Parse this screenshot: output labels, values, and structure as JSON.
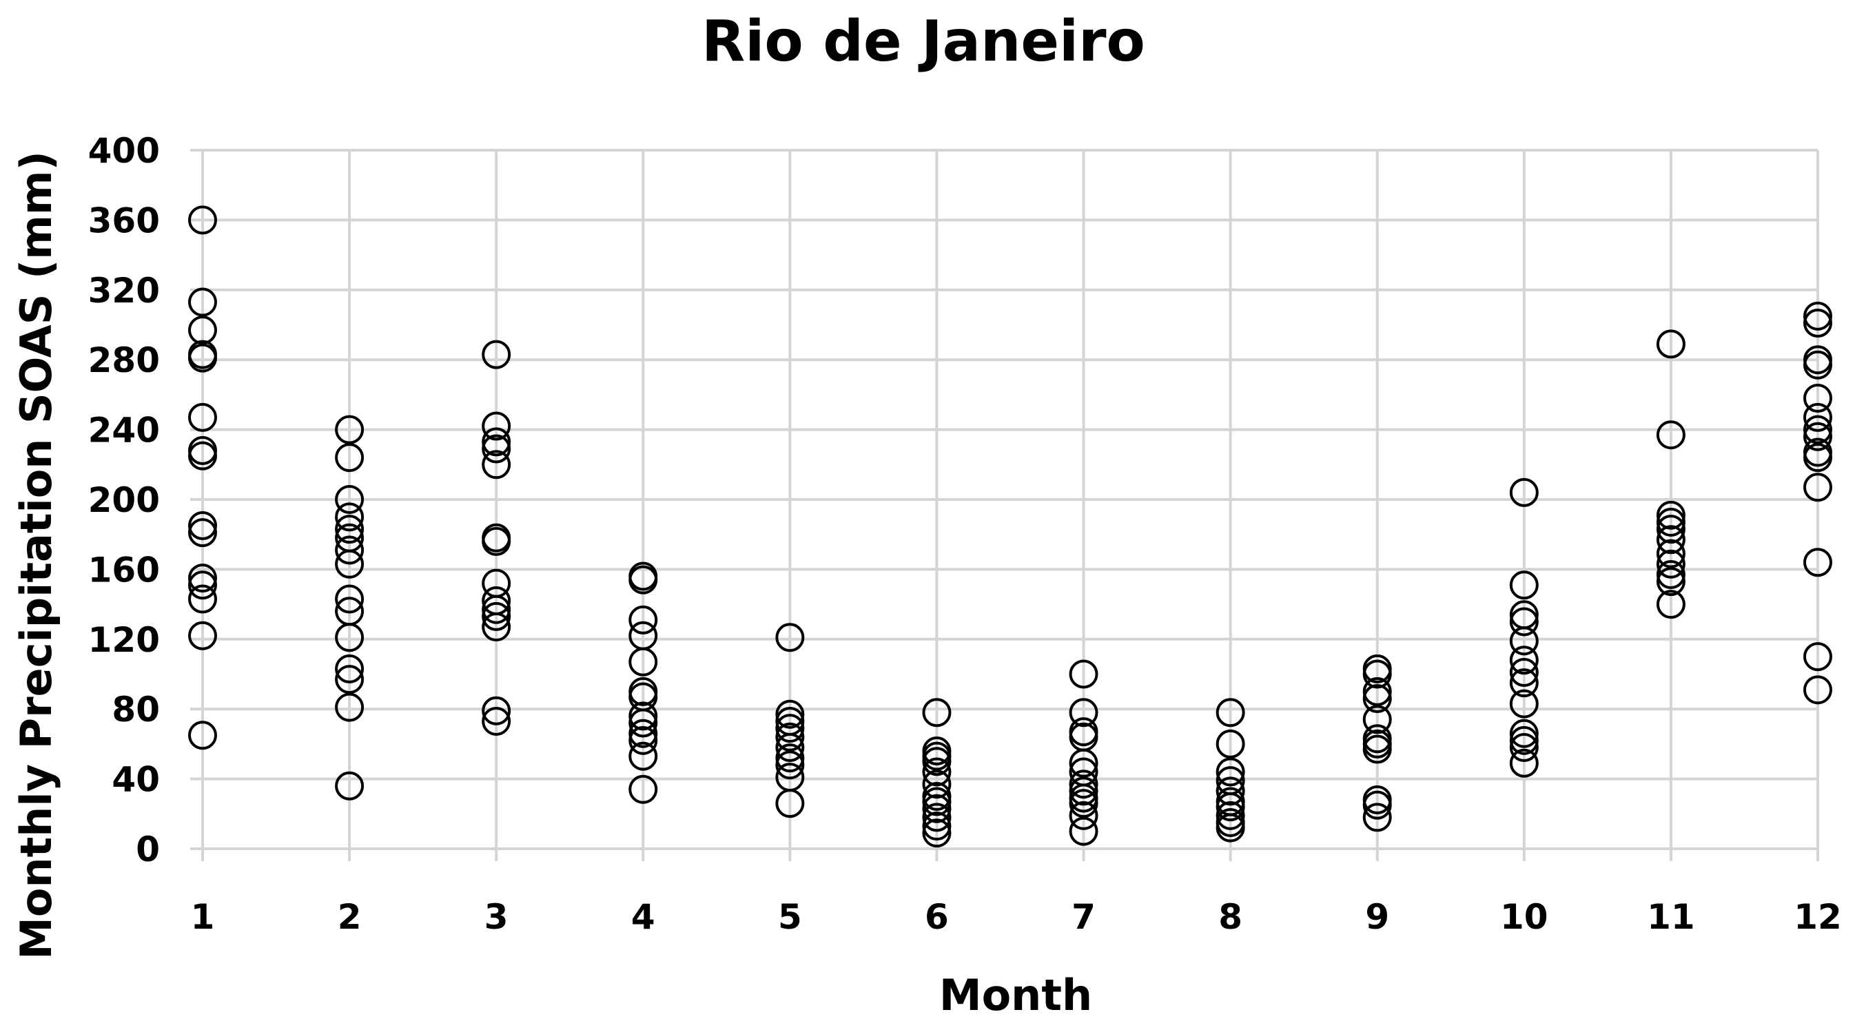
{
  "chart_data": {
    "type": "scatter",
    "title": "Rio de Janeiro",
    "xlabel": "Month",
    "ylabel": "Monthly Precipitation SOAS (mm)",
    "x_ticks": [
      1,
      2,
      3,
      4,
      5,
      6,
      7,
      8,
      9,
      10,
      11,
      12
    ],
    "y_ticks": [
      0,
      40,
      80,
      120,
      160,
      200,
      240,
      280,
      320,
      360,
      400
    ],
    "xlim": [
      1,
      12
    ],
    "ylim": [
      0,
      400
    ],
    "grid": true,
    "marker": "open-circle",
    "points": [
      [
        1,
        360
      ],
      [
        1,
        313
      ],
      [
        1,
        297
      ],
      [
        1,
        283
      ],
      [
        1,
        281
      ],
      [
        1,
        247
      ],
      [
        1,
        228
      ],
      [
        1,
        225
      ],
      [
        1,
        185
      ],
      [
        1,
        181
      ],
      [
        1,
        155
      ],
      [
        1,
        151
      ],
      [
        1,
        143
      ],
      [
        1,
        122
      ],
      [
        1,
        65
      ],
      [
        2,
        240
      ],
      [
        2,
        224
      ],
      [
        2,
        200
      ],
      [
        2,
        190
      ],
      [
        2,
        183
      ],
      [
        2,
        178
      ],
      [
        2,
        171
      ],
      [
        2,
        163
      ],
      [
        2,
        143
      ],
      [
        2,
        136
      ],
      [
        2,
        121
      ],
      [
        2,
        103
      ],
      [
        2,
        97
      ],
      [
        2,
        81
      ],
      [
        2,
        36
      ],
      [
        3,
        283
      ],
      [
        3,
        242
      ],
      [
        3,
        233
      ],
      [
        3,
        229
      ],
      [
        3,
        220
      ],
      [
        3,
        178
      ],
      [
        3,
        176
      ],
      [
        3,
        152
      ],
      [
        3,
        142
      ],
      [
        3,
        137
      ],
      [
        3,
        133
      ],
      [
        3,
        127
      ],
      [
        3,
        79
      ],
      [
        3,
        73
      ],
      [
        4,
        156
      ],
      [
        4,
        154
      ],
      [
        4,
        131
      ],
      [
        4,
        122
      ],
      [
        4,
        107
      ],
      [
        4,
        90
      ],
      [
        4,
        87
      ],
      [
        4,
        76
      ],
      [
        4,
        72
      ],
      [
        4,
        66
      ],
      [
        4,
        62
      ],
      [
        4,
        53
      ],
      [
        4,
        34
      ],
      [
        5,
        121
      ],
      [
        5,
        77
      ],
      [
        5,
        73
      ],
      [
        5,
        69
      ],
      [
        5,
        64
      ],
      [
        5,
        58
      ],
      [
        5,
        52
      ],
      [
        5,
        48
      ],
      [
        5,
        41
      ],
      [
        5,
        26
      ],
      [
        6,
        78
      ],
      [
        6,
        56
      ],
      [
        6,
        53
      ],
      [
        6,
        50
      ],
      [
        6,
        44
      ],
      [
        6,
        37
      ],
      [
        6,
        30
      ],
      [
        6,
        27
      ],
      [
        6,
        23
      ],
      [
        6,
        18
      ],
      [
        6,
        13
      ],
      [
        6,
        9
      ],
      [
        7,
        100
      ],
      [
        7,
        78
      ],
      [
        7,
        67
      ],
      [
        7,
        64
      ],
      [
        7,
        49
      ],
      [
        7,
        44
      ],
      [
        7,
        37
      ],
      [
        7,
        33
      ],
      [
        7,
        29
      ],
      [
        7,
        26
      ],
      [
        7,
        19
      ],
      [
        7,
        10
      ],
      [
        8,
        78
      ],
      [
        8,
        60
      ],
      [
        8,
        44
      ],
      [
        8,
        39
      ],
      [
        8,
        33
      ],
      [
        8,
        27
      ],
      [
        8,
        24
      ],
      [
        8,
        19
      ],
      [
        8,
        15
      ],
      [
        8,
        12
      ],
      [
        9,
        103
      ],
      [
        9,
        100
      ],
      [
        9,
        90
      ],
      [
        9,
        86
      ],
      [
        9,
        74
      ],
      [
        9,
        63
      ],
      [
        9,
        60
      ],
      [
        9,
        57
      ],
      [
        9,
        28
      ],
      [
        9,
        25
      ],
      [
        9,
        18
      ],
      [
        10,
        204
      ],
      [
        10,
        151
      ],
      [
        10,
        134
      ],
      [
        10,
        130
      ],
      [
        10,
        119
      ],
      [
        10,
        108
      ],
      [
        10,
        101
      ],
      [
        10,
        95
      ],
      [
        10,
        83
      ],
      [
        10,
        66
      ],
      [
        10,
        62
      ],
      [
        10,
        58
      ],
      [
        10,
        49
      ],
      [
        11,
        289
      ],
      [
        11,
        237
      ],
      [
        11,
        191
      ],
      [
        11,
        187
      ],
      [
        11,
        183
      ],
      [
        11,
        177
      ],
      [
        11,
        169
      ],
      [
        11,
        163
      ],
      [
        11,
        157
      ],
      [
        11,
        153
      ],
      [
        11,
        140
      ],
      [
        12,
        305
      ],
      [
        12,
        301
      ],
      [
        12,
        280
      ],
      [
        12,
        277
      ],
      [
        12,
        258
      ],
      [
        12,
        247
      ],
      [
        12,
        240
      ],
      [
        12,
        236
      ],
      [
        12,
        227
      ],
      [
        12,
        224
      ],
      [
        12,
        207
      ],
      [
        12,
        164
      ],
      [
        12,
        110
      ],
      [
        12,
        91
      ]
    ]
  }
}
